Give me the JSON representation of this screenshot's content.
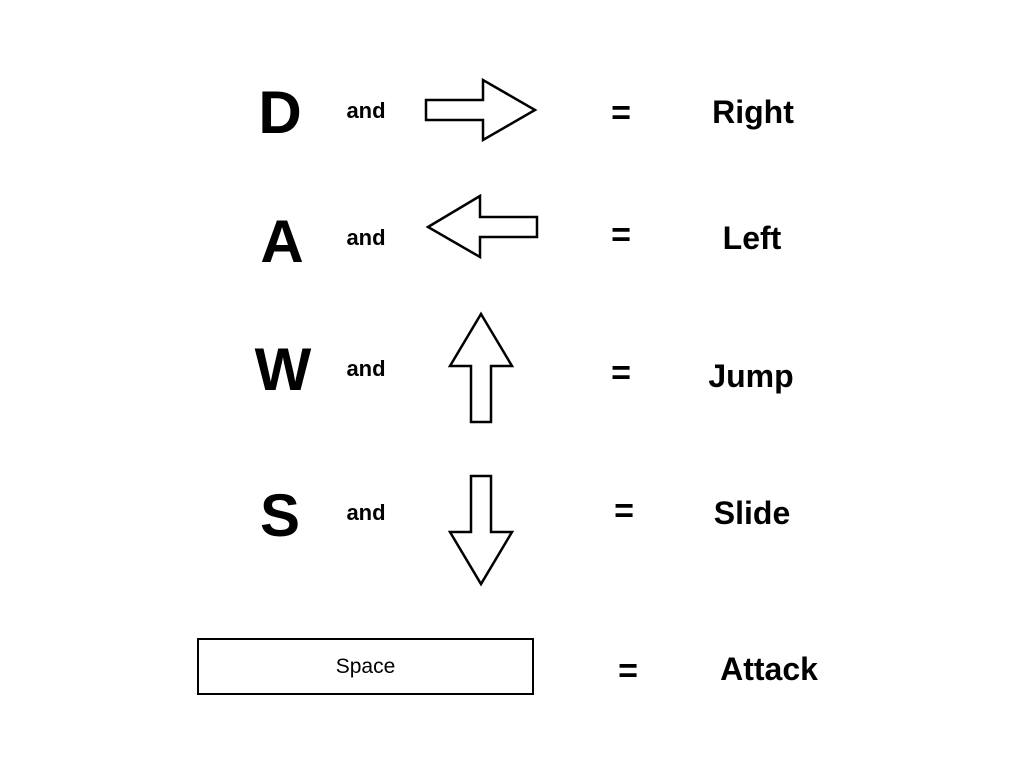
{
  "rows": [
    {
      "key": "D",
      "connector": "and",
      "arrow_icon": "right-arrow-icon",
      "equals": "=",
      "action": "Right"
    },
    {
      "key": "A",
      "connector": "and",
      "arrow_icon": "left-arrow-icon",
      "equals": "=",
      "action": "Left"
    },
    {
      "key": "W",
      "connector": "and",
      "arrow_icon": "up-arrow-icon",
      "equals": "=",
      "action": "Jump"
    },
    {
      "key": "S",
      "connector": "and",
      "arrow_icon": "down-arrow-icon",
      "equals": "=",
      "action": "Slide"
    }
  ],
  "space": {
    "label": "Space",
    "equals": "=",
    "action": "Attack"
  },
  "colors": {
    "ink": "#000000",
    "background": "#ffffff"
  }
}
